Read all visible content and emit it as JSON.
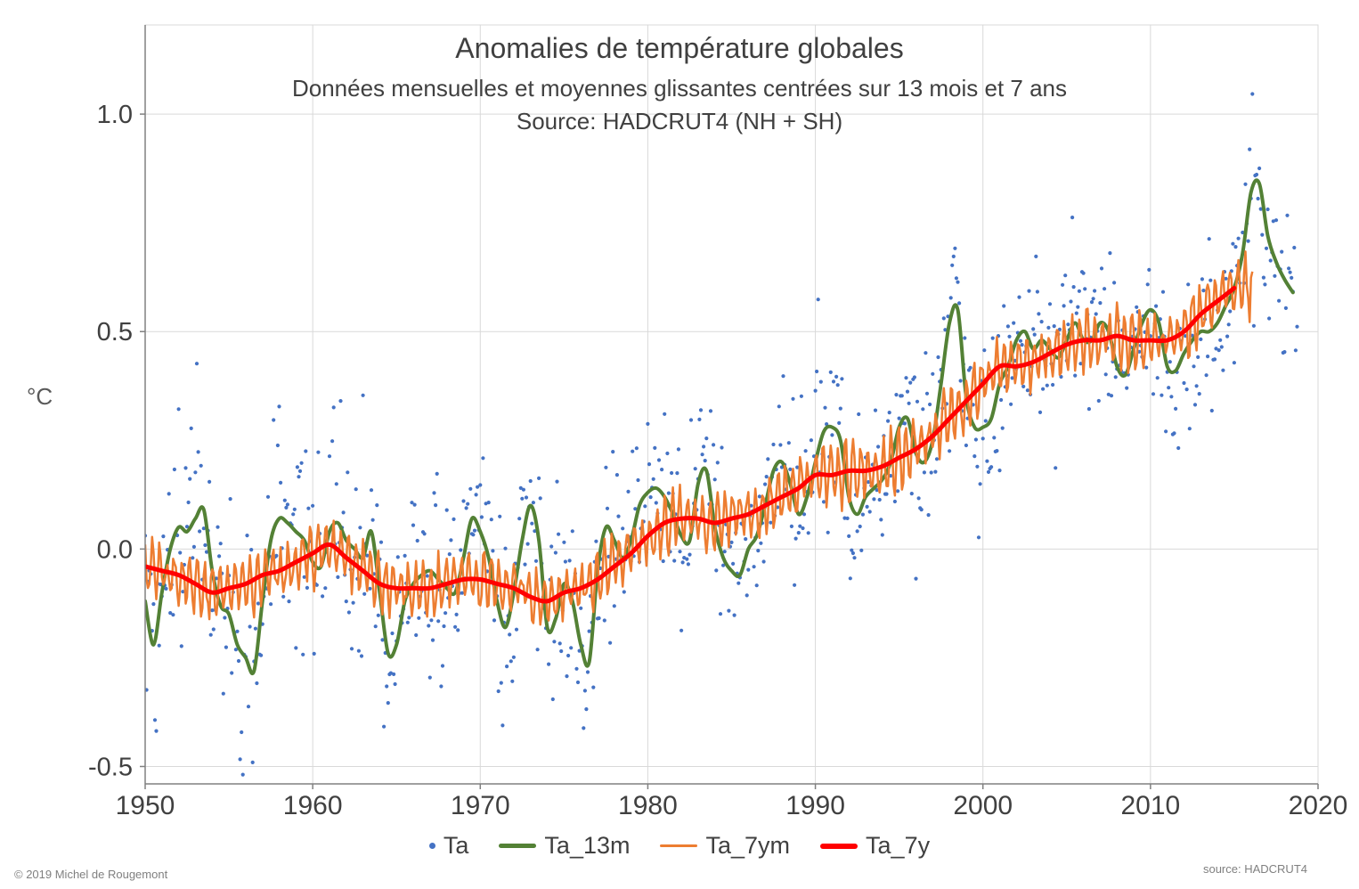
{
  "page": {
    "copyright": "© 2019 Michel de Rougemont",
    "source_note": "source: HADCRUT4"
  },
  "chart_data": {
    "type": "line+scatter",
    "title": "Anomalies de température globales",
    "subtitle": "Données mensuelles et moyennes glissantes centrées sur 13 mois et 7 ans",
    "source_line": "Source: HADCRUT4 (NH + SH)",
    "ylabel": "°C",
    "xlim": [
      1950,
      2020
    ],
    "ylim": [
      -0.54,
      1.205
    ],
    "xticks": [
      1950,
      1960,
      1970,
      1980,
      1990,
      2000,
      2010,
      2020
    ],
    "xtick_labels": [
      "1950",
      "1960",
      "1970",
      "1980",
      "1990",
      "2000",
      "2010",
      "2020"
    ],
    "yticks": [
      -0.5,
      0.0,
      0.5,
      1.0
    ],
    "ytick_labels": [
      "-0.5",
      "0.0",
      "0.5",
      "1.0"
    ],
    "grid": true,
    "legend_position": "bottom",
    "colors": {
      "scatter": "#4472C4",
      "ta_13m": "#538135",
      "ta_7ym": "#ED7D31",
      "ta_7y": "#FF0000",
      "grid": "#D9D9D9",
      "axis": "#808080",
      "text": "#404040"
    },
    "legend": [
      {
        "label": "Ta",
        "type": "scatter",
        "color": "#4472C4"
      },
      {
        "label": "Ta_13m",
        "type": "line",
        "color": "#538135"
      },
      {
        "label": "Ta_7ym",
        "type": "line",
        "color": "#ED7D31"
      },
      {
        "label": "Ta_7y",
        "type": "line",
        "color": "#FF0000"
      }
    ],
    "series": {
      "Ta_13m": {
        "name": "Ta_13m",
        "kind": "line",
        "x_start": 1950.0,
        "x_step": 0.5,
        "y": [
          -0.12,
          -0.22,
          -0.1,
          0.0,
          0.05,
          0.04,
          0.07,
          0.09,
          -0.05,
          -0.13,
          -0.15,
          -0.22,
          -0.25,
          -0.28,
          -0.12,
          0.02,
          0.07,
          0.06,
          0.04,
          0.02,
          -0.03,
          -0.04,
          0.04,
          0.06,
          0.02,
          0.0,
          -0.02,
          0.04,
          -0.1,
          -0.24,
          -0.22,
          -0.12,
          -0.08,
          -0.06,
          -0.05,
          -0.07,
          -0.09,
          -0.1,
          -0.02,
          0.07,
          0.04,
          -0.02,
          -0.12,
          -0.18,
          -0.1,
          0.02,
          0.1,
          0.02,
          -0.18,
          -0.16,
          -0.08,
          -0.12,
          -0.22,
          -0.26,
          -0.05,
          0.05,
          0.02,
          -0.02,
          0.02,
          0.1,
          0.13,
          0.14,
          0.12,
          0.08,
          0.03,
          0.02,
          0.15,
          0.18,
          0.05,
          -0.02,
          -0.05,
          -0.06,
          0.0,
          0.03,
          0.1,
          0.18,
          0.2,
          0.15,
          0.08,
          0.12,
          0.2,
          0.27,
          0.28,
          0.25,
          0.12,
          0.08,
          0.12,
          0.14,
          0.16,
          0.2,
          0.28,
          0.3,
          0.22,
          0.2,
          0.25,
          0.38,
          0.52,
          0.55,
          0.35,
          0.28,
          0.28,
          0.3,
          0.38,
          0.42,
          0.48,
          0.5,
          0.46,
          0.48,
          0.46,
          0.44,
          0.48,
          0.52,
          0.48,
          0.48,
          0.52,
          0.5,
          0.42,
          0.4,
          0.46,
          0.52,
          0.55,
          0.52,
          0.42,
          0.41,
          0.45,
          0.48,
          0.5,
          0.5,
          0.52,
          0.56,
          0.6,
          0.68,
          0.82,
          0.84,
          0.72,
          0.66,
          0.62,
          0.59
        ]
      },
      "Ta_7y": {
        "name": "Ta_7y",
        "kind": "line",
        "x_start": 1950,
        "x_step": 1,
        "y": [
          -0.04,
          -0.05,
          -0.06,
          -0.08,
          -0.1,
          -0.09,
          -0.08,
          -0.06,
          -0.05,
          -0.03,
          -0.01,
          0.01,
          -0.02,
          -0.05,
          -0.08,
          -0.09,
          -0.09,
          -0.09,
          -0.08,
          -0.07,
          -0.07,
          -0.08,
          -0.09,
          -0.11,
          -0.12,
          -0.1,
          -0.09,
          -0.07,
          -0.04,
          -0.01,
          0.03,
          0.06,
          0.07,
          0.07,
          0.06,
          0.07,
          0.08,
          0.1,
          0.12,
          0.14,
          0.17,
          0.17,
          0.18,
          0.18,
          0.19,
          0.21,
          0.23,
          0.26,
          0.3,
          0.34,
          0.38,
          0.42,
          0.42,
          0.43,
          0.45,
          0.47,
          0.48,
          0.48,
          0.49,
          0.48,
          0.48,
          0.48,
          0.5,
          0.54,
          0.57,
          0.6
        ]
      },
      "Ta_7ym": {
        "name": "Ta_7ym",
        "kind": "derived-band",
        "baseline": "Ta_7y",
        "x_start": 1950.0,
        "x_end": 2016.1,
        "points_per_year": 12,
        "osc_amplitude": 0.05,
        "osc_period_years": 0.45,
        "noise": 0.025,
        "seed": 77
      },
      "Ta": {
        "name": "Ta",
        "kind": "derived-scatter",
        "baseline": "Ta_13m",
        "x_start": 1950.0,
        "x_end": 2018.75,
        "points_per_year": 12,
        "noise_sd_start": 0.13,
        "noise_sd_end": 0.09,
        "seed": 20190501
      }
    }
  }
}
